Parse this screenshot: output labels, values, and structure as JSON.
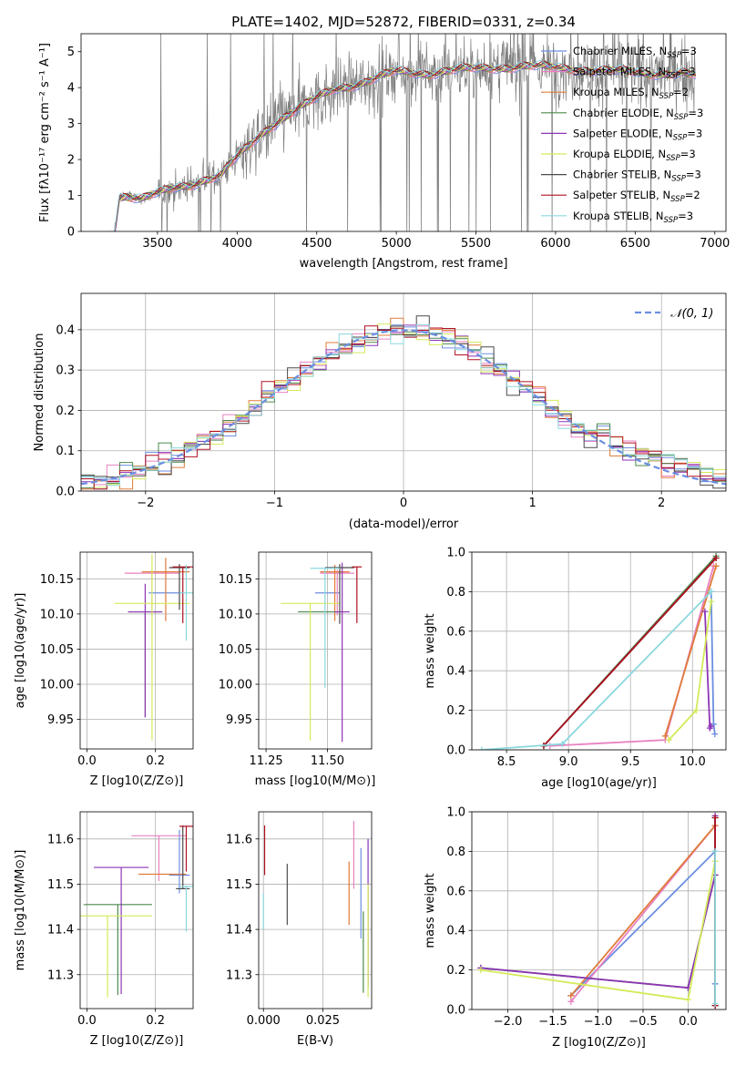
{
  "figure": {
    "title": "PLATE=1402, MJD=52872, FIBERID=0331, z=0.34"
  },
  "colors": {
    "blue": "#6b8ee0",
    "orange": "#e07b3a",
    "pink": "#e882c0",
    "green": "#4d8a4d",
    "purple": "#8e35b5",
    "yellowgreen": "#d4ea5a",
    "black": "#4a4a4a",
    "red": "#b01020",
    "cyan": "#8ad8de",
    "gray": "#7f7f7f"
  },
  "chart_data": [
    {
      "id": "spectrum",
      "type": "line",
      "xlabel": "wavelength [Angstrom, rest frame]",
      "ylabel": "Flux [fλ10⁻¹⁷ erg cm⁻² s⁻¹ A⁻¹]",
      "xlim": [
        3020,
        7070
      ],
      "ylim": [
        0,
        5.5
      ],
      "xticks": [
        3500,
        4000,
        4500,
        5000,
        5500,
        6000,
        6500,
        7000
      ],
      "yticks": [
        0,
        1,
        2,
        3,
        4,
        5
      ],
      "data_color": "#7f7f7f",
      "model_knots_x": [
        3230,
        3260,
        3300,
        3400,
        3500,
        3600,
        3700,
        3800,
        3900,
        3950,
        4000,
        4100,
        4200,
        4300,
        4400,
        4500,
        4600,
        4700,
        4800,
        4900,
        5000,
        5200,
        5400,
        5600,
        5800,
        6000,
        6200,
        6400,
        6600,
        6800,
        6900
      ],
      "model_knots_y": [
        0.0,
        0.95,
        1.0,
        0.9,
        1.05,
        1.2,
        1.3,
        1.45,
        1.55,
        1.85,
        2.05,
        2.5,
        2.9,
        3.2,
        3.45,
        3.7,
        3.95,
        4.05,
        4.15,
        4.3,
        4.45,
        4.4,
        4.5,
        4.55,
        4.6,
        4.55,
        4.5,
        4.45,
        4.4,
        4.4,
        4.3
      ],
      "legend": [
        {
          "label": "Chabrier MILES, N",
          "sub": "SSP",
          "tail": "=3",
          "color": "#6b8ee0"
        },
        {
          "label": "Salpeter MILES, N",
          "sub": "SSP",
          "tail": "=3",
          "color": "#e882c0"
        },
        {
          "label": "Kroupa MILES, N",
          "sub": "SSP",
          "tail": "=2",
          "color": "#e07b3a"
        },
        {
          "label": "Chabrier ELODIE, N",
          "sub": "SSP",
          "tail": "=3",
          "color": "#4d8a4d"
        },
        {
          "label": "Salpeter ELODIE, N",
          "sub": "SSP",
          "tail": "=3",
          "color": "#8e35b5"
        },
        {
          "label": "Kroupa ELODIE, N",
          "sub": "SSP",
          "tail": "=3",
          "color": "#d4ea5a"
        },
        {
          "label": "Chabrier STELIB, N",
          "sub": "SSP",
          "tail": "=3",
          "color": "#4a4a4a"
        },
        {
          "label": "Salpeter STELIB, N",
          "sub": "SSP",
          "tail": "=2",
          "color": "#b01020"
        },
        {
          "label": "Kroupa STELIB, N",
          "sub": "SSP",
          "tail": "=3",
          "color": "#8ad8de"
        }
      ]
    },
    {
      "id": "residuals",
      "type": "step",
      "xlabel": "(data-model)/error",
      "ylabel": "Normed distribution",
      "xlim": [
        -2.5,
        2.5
      ],
      "ylim": [
        0,
        0.49
      ],
      "xticks": [
        -2,
        -1,
        0,
        1,
        2
      ],
      "yticks": [
        0.0,
        0.1,
        0.2,
        0.3,
        0.4
      ],
      "bin_width": 0.1,
      "gaussian_label": "𝒩(0, 1)",
      "gaussian_color": "#6b8ee0",
      "series_colors": [
        "#6b8ee0",
        "#e882c0",
        "#e07b3a",
        "#4d8a4d",
        "#8e35b5",
        "#d4ea5a",
        "#4a4a4a",
        "#b01020",
        "#8ad8de"
      ]
    },
    {
      "id": "age-vs-Z",
      "type": "errorbar",
      "xlabel": "Z [log10(Z/Z⊙)]",
      "ylabel": "age [log10(age/yr)]",
      "xlim": [
        -0.02,
        0.31
      ],
      "ylim": [
        9.908,
        10.188
      ],
      "xticks": [
        0.0,
        0.2
      ],
      "yticks": [
        9.95,
        10.0,
        10.05,
        10.1,
        10.15
      ],
      "points": [
        {
          "x": 0.23,
          "y": 10.13,
          "xerr": 0.05,
          "yerr_lo": 0.0,
          "yerr_hi": 0.0,
          "color": "#6b8ee0"
        },
        {
          "x": 0.19,
          "y": 10.158,
          "xerr": 0.08,
          "yerr_lo": 0.06,
          "yerr_hi": 0.005,
          "color": "#e882c0"
        },
        {
          "x": 0.23,
          "y": 10.16,
          "xerr": 0.07,
          "yerr_lo": 0.07,
          "yerr_hi": 0.02,
          "color": "#e07b3a"
        },
        {
          "x": 0.17,
          "y": 10.103,
          "xerr": 0.05,
          "yerr_lo": 0.15,
          "yerr_hi": 0.0,
          "color": "#4d8a4d"
        },
        {
          "x": 0.17,
          "y": 10.103,
          "xerr": 0.05,
          "yerr_lo": 0.15,
          "yerr_hi": 0.04,
          "color": "#8e35b5"
        },
        {
          "x": 0.19,
          "y": 10.115,
          "xerr": 0.11,
          "yerr_lo": 0.195,
          "yerr_hi": 0.07,
          "color": "#d4ea5a"
        },
        {
          "x": 0.27,
          "y": 10.166,
          "xerr": 0.03,
          "yerr_lo": 0.06,
          "yerr_hi": 0.005,
          "color": "#4a4a4a"
        },
        {
          "x": 0.28,
          "y": 10.167,
          "xerr": 0.03,
          "yerr_lo": 0.08,
          "yerr_hi": 0.0,
          "color": "#b01020"
        },
        {
          "x": 0.29,
          "y": 10.13,
          "xerr": 0.02,
          "yerr_lo": 0.068,
          "yerr_hi": 0.04,
          "color": "#8ad8de"
        }
      ]
    },
    {
      "id": "age-vs-mass",
      "type": "errorbar",
      "xlabel": "mass [log10(M/M⊙)]",
      "ylabel": "",
      "xlim": [
        11.22,
        11.68
      ],
      "ylim": [
        9.908,
        10.188
      ],
      "xticks": [
        11.25,
        11.5
      ],
      "yticks": [
        9.95,
        10.0,
        10.05,
        10.1,
        10.15
      ],
      "points": [
        {
          "x": 11.5,
          "y": 10.13,
          "xerr": 0.05,
          "yerr_lo": 0.0,
          "yerr_hi": 0.0,
          "color": "#6b8ee0"
        },
        {
          "x": 11.54,
          "y": 10.158,
          "xerr": 0.07,
          "yerr_lo": 0.06,
          "yerr_hi": 0.005,
          "color": "#e882c0"
        },
        {
          "x": 11.53,
          "y": 10.16,
          "xerr": 0.06,
          "yerr_lo": 0.07,
          "yerr_hi": 0.01,
          "color": "#e07b3a"
        },
        {
          "x": 11.46,
          "y": 10.103,
          "xerr": 0.08,
          "yerr_lo": 0.0,
          "yerr_hi": 0.0,
          "color": "#4d8a4d"
        },
        {
          "x": 11.56,
          "y": 10.103,
          "xerr": 0.03,
          "yerr_lo": 0.185,
          "yerr_hi": 0.07,
          "color": "#8e35b5"
        },
        {
          "x": 11.43,
          "y": 10.115,
          "xerr": 0.12,
          "yerr_lo": 0.195,
          "yerr_hi": 0.0,
          "color": "#d4ea5a"
        },
        {
          "x": 11.55,
          "y": 10.166,
          "xerr": 0.06,
          "yerr_lo": 0.08,
          "yerr_hi": 0.005,
          "color": "#4a4a4a"
        },
        {
          "x": 11.62,
          "y": 10.167,
          "xerr": 0.02,
          "yerr_lo": 0.08,
          "yerr_hi": 0.0,
          "color": "#b01020"
        },
        {
          "x": 11.49,
          "y": 10.165,
          "xerr": 0.06,
          "yerr_lo": 0.17,
          "yerr_hi": 0.0,
          "color": "#8ad8de"
        }
      ]
    },
    {
      "id": "weight-vs-age",
      "type": "line",
      "xlabel": "age [log10(age/yr)]",
      "ylabel": "mass weight",
      "xlim": [
        8.22,
        10.27
      ],
      "ylim": [
        0,
        1.0
      ],
      "xticks": [
        8.5,
        9.0,
        9.5,
        10.0
      ],
      "yticks": [
        0.0,
        0.2,
        0.4,
        0.6,
        0.8,
        1.0
      ],
      "series": [
        {
          "color": "#6b8ee0",
          "x": [
            10.15,
            10.17,
            10.18
          ],
          "y": [
            0.8,
            0.13,
            0.08
          ]
        },
        {
          "color": "#e882c0",
          "x": [
            8.85,
            9.78,
            10.17
          ],
          "y": [
            0.02,
            0.05,
            0.93
          ]
        },
        {
          "color": "#e07b3a",
          "x": [
            9.78,
            10.19
          ],
          "y": [
            0.07,
            0.93
          ]
        },
        {
          "color": "#4d8a4d",
          "x": [
            8.8,
            10.19
          ],
          "y": [
            0.02,
            0.98
          ]
        },
        {
          "color": "#8e35b5",
          "x": [
            10.1,
            10.14,
            10.15
          ],
          "y": [
            0.7,
            0.11,
            0.12
          ]
        },
        {
          "color": "#d4ea5a",
          "x": [
            9.81,
            10.03,
            10.15
          ],
          "y": [
            0.05,
            0.2,
            0.75
          ]
        },
        {
          "color": "#4a4a4a",
          "x": [
            8.8,
            10.19
          ],
          "y": [
            0.02,
            0.97
          ]
        },
        {
          "color": "#b01020",
          "x": [
            8.8,
            10.19
          ],
          "y": [
            0.02,
            0.97
          ]
        },
        {
          "color": "#8ad8de",
          "x": [
            8.3,
            8.95,
            10.15
          ],
          "y": [
            0.0,
            0.03,
            0.8
          ]
        }
      ]
    },
    {
      "id": "mass-vs-Z",
      "type": "errorbar",
      "xlabel": "Z [log10(Z/Z⊙)]",
      "ylabel": "mass [log10(M/M⊙)]",
      "xlim": [
        -0.02,
        0.31
      ],
      "ylim": [
        11.225,
        11.66
      ],
      "xticks": [
        0.0,
        0.2
      ],
      "yticks": [
        11.3,
        11.4,
        11.5,
        11.6
      ],
      "points": [
        {
          "x": 0.27,
          "y": 11.52,
          "xerr": 0.03,
          "yerr_lo": 0.04,
          "yerr_hi": 0.1,
          "color": "#6b8ee0"
        },
        {
          "x": 0.21,
          "y": 11.607,
          "xerr": 0.08,
          "yerr_lo": 0.1,
          "yerr_hi": 0.0,
          "color": "#e882c0"
        },
        {
          "x": 0.22,
          "y": 11.522,
          "xerr": 0.07,
          "yerr_lo": 0.0,
          "yerr_hi": 0.0,
          "color": "#e07b3a"
        },
        {
          "x": 0.09,
          "y": 11.455,
          "xerr": 0.1,
          "yerr_lo": 0.2,
          "yerr_hi": 0.0,
          "color": "#4d8a4d"
        },
        {
          "x": 0.1,
          "y": 11.537,
          "xerr": 0.08,
          "yerr_lo": 0.28,
          "yerr_hi": 0.0,
          "color": "#8e35b5"
        },
        {
          "x": 0.06,
          "y": 11.43,
          "xerr": 0.13,
          "yerr_lo": 0.18,
          "yerr_hi": 0.0,
          "color": "#d4ea5a"
        },
        {
          "x": 0.28,
          "y": 11.49,
          "xerr": 0.02,
          "yerr_lo": 0.0,
          "yerr_hi": 0.14,
          "color": "#4a4a4a"
        },
        {
          "x": 0.29,
          "y": 11.628,
          "xerr": 0.02,
          "yerr_lo": 0.1,
          "yerr_hi": 0.0,
          "color": "#b01020"
        },
        {
          "x": 0.29,
          "y": 11.495,
          "xerr": 0.02,
          "yerr_lo": 0.1,
          "yerr_hi": 0.0,
          "color": "#8ad8de"
        }
      ]
    },
    {
      "id": "mass-vs-ebv",
      "type": "errorbar",
      "xlabel": "E(B-V)",
      "ylabel": "",
      "xlim": [
        -0.002,
        0.0455
      ],
      "ylim": [
        11.225,
        11.66
      ],
      "xticks": [
        0.0,
        0.025
      ],
      "yticks": [
        11.3,
        11.4,
        11.5,
        11.6
      ],
      "points": [
        {
          "x": 0.041,
          "y": 11.5,
          "xerr": 0.0,
          "yerr_lo": 0.12,
          "yerr_hi": 0.08,
          "color": "#6b8ee0"
        },
        {
          "x": 0.038,
          "y": 11.56,
          "xerr": 0.0,
          "yerr_lo": 0.07,
          "yerr_hi": 0.08,
          "color": "#e882c0"
        },
        {
          "x": 0.036,
          "y": 11.5,
          "xerr": 0.0,
          "yerr_lo": 0.09,
          "yerr_hi": 0.05,
          "color": "#e07b3a"
        },
        {
          "x": 0.042,
          "y": 11.44,
          "xerr": 0.0,
          "yerr_lo": 0.18,
          "yerr_hi": 0.0,
          "color": "#4d8a4d"
        },
        {
          "x": 0.044,
          "y": 11.5,
          "xerr": 0.0,
          "yerr_lo": 0.23,
          "yerr_hi": 0.1,
          "color": "#8e35b5"
        },
        {
          "x": 0.044,
          "y": 11.45,
          "xerr": 0.0,
          "yerr_lo": 0.2,
          "yerr_hi": 0.05,
          "color": "#d4ea5a"
        },
        {
          "x": 0.01,
          "y": 11.48,
          "xerr": 0.0,
          "yerr_lo": 0.07,
          "yerr_hi": 0.065,
          "color": "#4a4a4a"
        },
        {
          "x": 0.0005,
          "y": 11.58,
          "xerr": 0.0,
          "yerr_lo": 0.06,
          "yerr_hi": 0.05,
          "color": "#b01020"
        },
        {
          "x": 0.0,
          "y": 11.48,
          "xerr": 0.0,
          "yerr_lo": 0.08,
          "yerr_hi": 0.0,
          "color": "#8ad8de"
        }
      ]
    },
    {
      "id": "weight-vs-Z",
      "type": "line",
      "xlabel": "Z [log10(Z/Z⊙)]",
      "ylabel": "mass weight",
      "xlim": [
        -2.4,
        0.42
      ],
      "ylim": [
        0,
        1.0
      ],
      "xticks": [
        -2.0,
        -1.5,
        -1.0,
        -0.5,
        0.0
      ],
      "yticks": [
        0.0,
        0.2,
        0.4,
        0.6,
        0.8,
        1.0
      ],
      "series": [
        {
          "color": "#6b8ee0",
          "x": [
            -1.3,
            0.3,
            0.3
          ],
          "y": [
            0.07,
            0.8,
            0.13
          ]
        },
        {
          "color": "#e882c0",
          "x": [
            -1.3,
            0.3,
            0.3
          ],
          "y": [
            0.04,
            0.93,
            0.02
          ]
        },
        {
          "color": "#e07b3a",
          "x": [
            -1.3,
            0.3
          ],
          "y": [
            0.07,
            0.93
          ]
        },
        {
          "color": "#4d8a4d",
          "x": [
            -2.3,
            0.0,
            0.3
          ],
          "y": [
            0.21,
            0.11,
            0.68
          ]
        },
        {
          "color": "#8e35b5",
          "x": [
            -2.3,
            0.0,
            0.3,
            0.3
          ],
          "y": [
            0.21,
            0.11,
            0.68,
            0.98
          ]
        },
        {
          "color": "#d4ea5a",
          "x": [
            -2.3,
            0.0,
            0.3
          ],
          "y": [
            0.2,
            0.05,
            0.75
          ]
        },
        {
          "color": "#4a4a4a",
          "x": [
            0.3,
            0.3
          ],
          "y": [
            0.02,
            0.97
          ]
        },
        {
          "color": "#b01020",
          "x": [
            0.3,
            0.3
          ],
          "y": [
            0.02,
            0.97
          ]
        },
        {
          "color": "#8ad8de",
          "x": [
            0.3,
            0.3
          ],
          "y": [
            0.03,
            0.8
          ]
        }
      ]
    }
  ]
}
